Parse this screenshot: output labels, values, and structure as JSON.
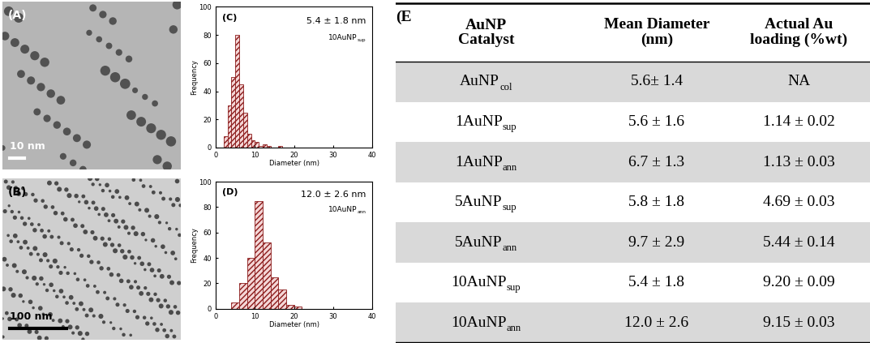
{
  "images": [
    {
      "label": "(A)",
      "scale_bar": "10 nm"
    },
    {
      "label": "(B)",
      "scale_bar": "100 nm"
    }
  ],
  "chart_data": [
    {
      "type": "histogram",
      "annotations": [
        "(C)",
        "5.4 ± 1.8 nm",
        {
          "text": "10AuNP",
          "sub": "sup"
        }
      ],
      "x_label": "Diameter (nm)",
      "y_label": "Frequency",
      "bins": [
        2,
        3,
        4,
        5,
        6,
        7,
        8,
        9,
        10,
        11,
        12,
        13,
        14,
        15,
        16,
        17
      ],
      "counts": [
        8,
        30,
        50,
        80,
        45,
        25,
        10,
        5,
        4,
        1,
        2,
        1,
        0,
        0,
        1
      ],
      "color": "#f4d6d6",
      "xlim": [
        0,
        40
      ],
      "xticks": [
        0,
        10,
        20,
        30,
        40
      ],
      "ylim": [
        0,
        100
      ],
      "yticks": [
        0,
        20,
        40,
        60,
        80,
        100
      ]
    },
    {
      "type": "histogram",
      "annotations": [
        "(D)",
        "12.0 ± 2.6 nm",
        {
          "text": "10AuNP",
          "sub": "ann"
        }
      ],
      "x_label": "Diameter (nm)",
      "y_label": "Frequency",
      "bins": [
        4,
        6,
        8,
        10,
        12,
        14,
        16,
        18,
        20,
        22
      ],
      "counts": [
        5,
        20,
        40,
        85,
        52,
        25,
        15,
        3,
        2
      ],
      "color": "#f4d6d6",
      "xlim": [
        0,
        40
      ],
      "xticks": [
        0,
        10,
        20,
        30,
        40
      ],
      "ylim": [
        0,
        100
      ],
      "yticks": [
        0,
        20,
        40,
        60,
        80,
        100
      ]
    }
  ],
  "table": {
    "label": "(E",
    "header": [
      "AuNP\nCatalyst",
      "Mean Diameter\n(nm)",
      "Actual Au\nloading (%wt)"
    ],
    "rows": [
      [
        {
          "text": "AuNP",
          "sub": "col"
        },
        "5.6± 1.4",
        "NA"
      ],
      [
        {
          "text": "1AuNP",
          "sub": "sup"
        },
        "5.6 ± 1.6",
        "1.14 ± 0.02"
      ],
      [
        {
          "text": "1AuNP",
          "sub": "ann"
        },
        "6.7 ± 1.3",
        "1.13 ± 0.03"
      ],
      [
        {
          "text": "5AuNP",
          "sub": "sup"
        },
        "5.8 ± 1.8",
        "4.69 ± 0.03"
      ],
      [
        {
          "text": "5AuNP",
          "sub": "ann"
        },
        "9.7 ± 2.9",
        "5.44 ± 0.14"
      ],
      [
        {
          "text": "10AuNP",
          "sub": "sup"
        },
        "5.4 ± 1.8",
        "9.20 ± 0.09"
      ],
      [
        {
          "text": "10AuNP",
          "sub": "ann"
        },
        "12.0 ± 2.6",
        "9.15 ± 0.03"
      ]
    ]
  }
}
